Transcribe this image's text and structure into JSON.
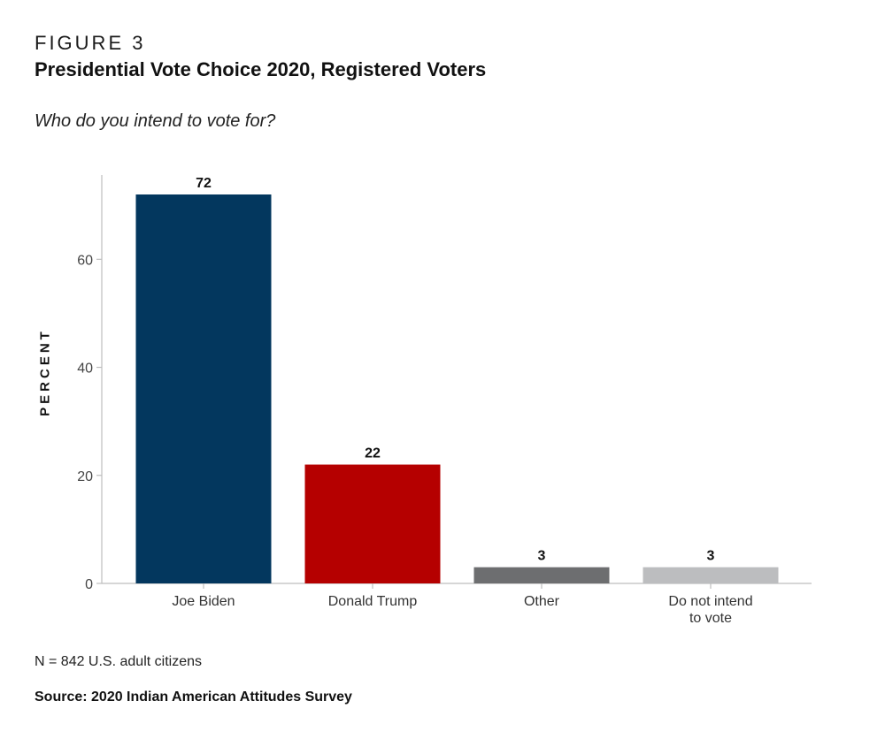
{
  "figure_label": "FIGURE 3",
  "title": "Presidential Vote Choice 2020, Registered Voters",
  "subtitle": "Who do you intend to vote for?",
  "note": "N = 842 U.S. adult citizens",
  "source": "Source: 2020 Indian American Attitudes Survey",
  "chart_data": {
    "type": "bar",
    "categories": [
      [
        "Joe Biden"
      ],
      [
        "Donald Trump"
      ],
      [
        "Other"
      ],
      [
        "Do not intend",
        "to vote"
      ]
    ],
    "values": [
      72,
      22,
      3,
      3
    ],
    "value_labels": [
      "72",
      "22",
      "3",
      "3"
    ],
    "colors": [
      "#03375e",
      "#b50000",
      "#6d6e70",
      "#bcbdbf"
    ],
    "ylabel": "PERCENT",
    "xlabel": "",
    "yticks": [
      0,
      20,
      40,
      60
    ],
    "ylim": [
      0,
      75
    ],
    "grid": false
  }
}
